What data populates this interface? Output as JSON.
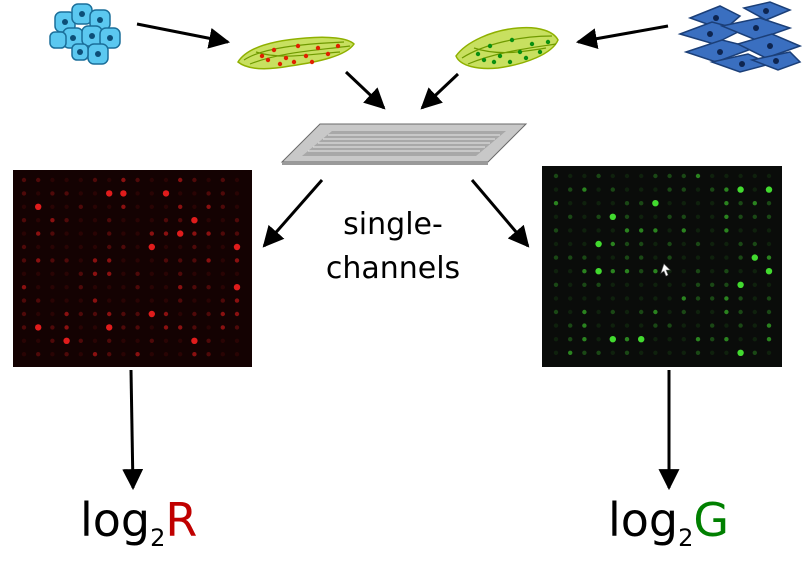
{
  "caption": {
    "line1": "single-",
    "line2": "channels"
  },
  "left_formula": {
    "base": "log",
    "sub": "2",
    "var": "R"
  },
  "right_formula": {
    "base": "log",
    "sub": "2",
    "var": "G"
  },
  "colors": {
    "red_channel": "#c00000",
    "green_channel": "#008000",
    "cell_blue": "#5bc8f0",
    "cell_darkblue": "#2f5fa8",
    "arrow": "#000000"
  }
}
